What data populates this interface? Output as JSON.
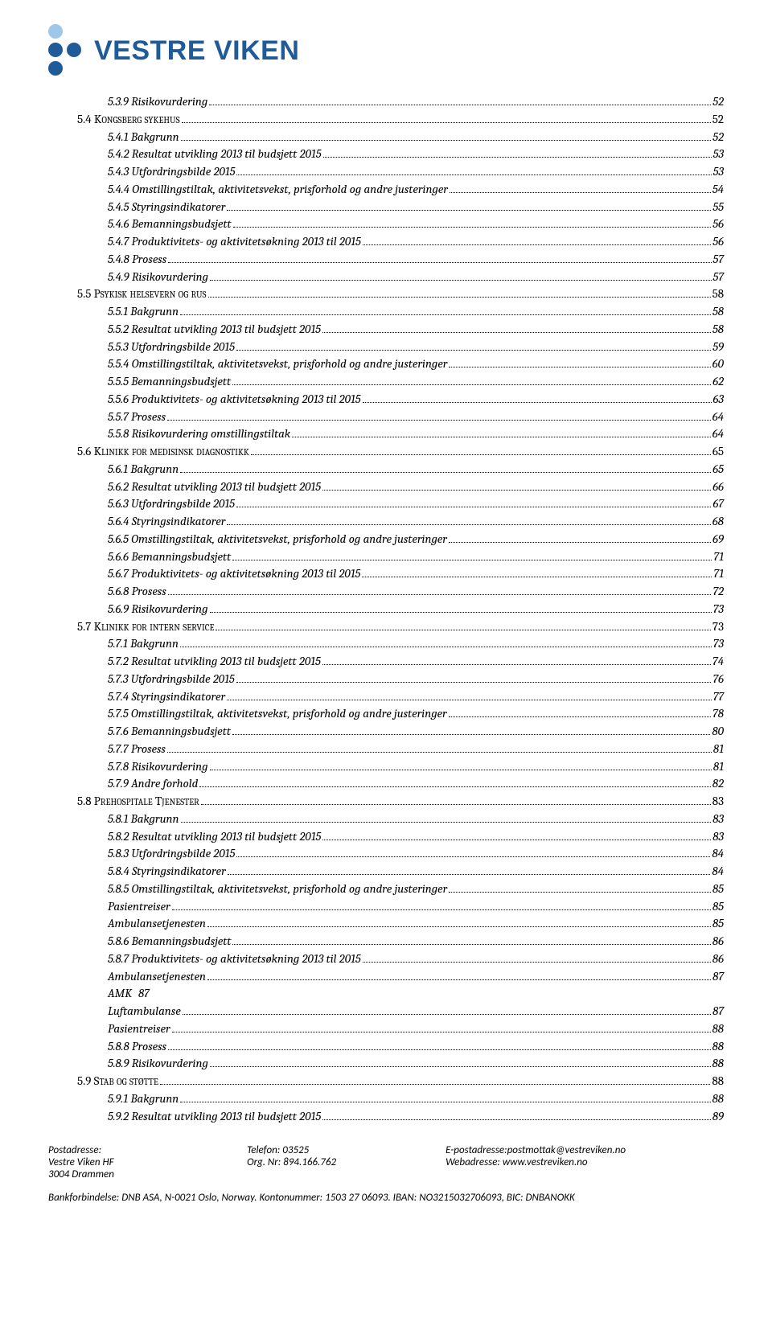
{
  "logo_text": "VESTRE VIKEN",
  "toc": [
    {
      "lvl": 2,
      "txt": "5.3.9 Risikovurdering",
      "pg": "52"
    },
    {
      "lvl": 1,
      "txt": "5.4 Kongsberg sykehus",
      "pg": "52",
      "section": true
    },
    {
      "lvl": 2,
      "txt": "5.4.1 Bakgrunn",
      "pg": "52"
    },
    {
      "lvl": 2,
      "txt": "5.4.2 Resultat utvikling 2013 til budsjett 2015",
      "pg": "53"
    },
    {
      "lvl": 2,
      "txt": "5.4.3 Utfordringsbilde 2015",
      "pg": "53"
    },
    {
      "lvl": 2,
      "txt": "5.4.4 Omstillingstiltak, aktivitetsvekst, prisforhold og andre justeringer",
      "pg": "54"
    },
    {
      "lvl": 2,
      "txt": "5.4.5 Styringsindikatorer",
      "pg": "55"
    },
    {
      "lvl": 2,
      "txt": "5.4.6 Bemanningsbudsjett",
      "pg": "56"
    },
    {
      "lvl": 2,
      "txt": "5.4.7 Produktivitets- og aktivitetsøkning 2013 til 2015",
      "pg": "56"
    },
    {
      "lvl": 2,
      "txt": "5.4.8 Prosess",
      "pg": "57"
    },
    {
      "lvl": 2,
      "txt": "5.4.9 Risikovurdering",
      "pg": "57"
    },
    {
      "lvl": 1,
      "txt": "5.5 Psykisk helsevern og rus",
      "pg": "58",
      "section": true
    },
    {
      "lvl": 2,
      "txt": "5.5.1 Bakgrunn",
      "pg": "58"
    },
    {
      "lvl": 2,
      "txt": "5.5.2 Resultat utvikling 2013 til budsjett 2015",
      "pg": "58"
    },
    {
      "lvl": 2,
      "txt": "5.5.3 Utfordringsbilde 2015",
      "pg": "59"
    },
    {
      "lvl": 2,
      "txt": "5.5.4 Omstillingstiltak, aktivitetsvekst, prisforhold og andre justeringer",
      "pg": "60"
    },
    {
      "lvl": 2,
      "txt": "5.5.5 Bemanningsbudsjett",
      "pg": "62"
    },
    {
      "lvl": 2,
      "txt": "5.5.6 Produktivitets- og aktivitetsøkning 2013 til 2015",
      "pg": "63"
    },
    {
      "lvl": 2,
      "txt": "5.5.7 Prosess",
      "pg": "64"
    },
    {
      "lvl": 2,
      "txt": "5.5.8 Risikovurdering omstillingstiltak",
      "pg": "64"
    },
    {
      "lvl": 1,
      "txt": "5.6 Klinikk for medisinsk diagnostikk",
      "pg": "65",
      "section": true
    },
    {
      "lvl": 2,
      "txt": "5.6.1 Bakgrunn",
      "pg": "65"
    },
    {
      "lvl": 2,
      "txt": "5.6.2 Resultat utvikling 2013 til budsjett 2015",
      "pg": "66"
    },
    {
      "lvl": 2,
      "txt": "5.6.3 Utfordringsbilde 2015",
      "pg": "67"
    },
    {
      "lvl": 2,
      "txt": "5.6.4 Styringsindikatorer",
      "pg": "68"
    },
    {
      "lvl": 2,
      "txt": "5.6.5 Omstillingstiltak, aktivitetsvekst, prisforhold og andre justeringer",
      "pg": "69"
    },
    {
      "lvl": 2,
      "txt": "5.6.6 Bemanningsbudsjett",
      "pg": "71"
    },
    {
      "lvl": 2,
      "txt": "5.6.7 Produktivitets- og aktivitetsøkning 2013 til 2015",
      "pg": "71"
    },
    {
      "lvl": 2,
      "txt": "5.6.8 Prosess",
      "pg": "72"
    },
    {
      "lvl": 2,
      "txt": "5.6.9 Risikovurdering",
      "pg": "73"
    },
    {
      "lvl": 1,
      "txt": "5.7 Klinikk for intern service",
      "pg": "73",
      "section": true
    },
    {
      "lvl": 2,
      "txt": "5.7.1 Bakgrunn",
      "pg": "73"
    },
    {
      "lvl": 2,
      "txt": "5.7.2 Resultat utvikling 2013 til budsjett 2015",
      "pg": "74"
    },
    {
      "lvl": 2,
      "txt": "5.7.3 Utfordringsbilde 2015",
      "pg": "76"
    },
    {
      "lvl": 2,
      "txt": "5.7.4 Styringsindikatorer",
      "pg": "77"
    },
    {
      "lvl": 2,
      "txt": "5.7.5 Omstillingstiltak, aktivitetsvekst, prisforhold og andre justeringer",
      "pg": "78"
    },
    {
      "lvl": 2,
      "txt": "5.7.6 Bemanningsbudsjett",
      "pg": "80"
    },
    {
      "lvl": 2,
      "txt": "5.7.7 Prosess",
      "pg": "81"
    },
    {
      "lvl": 2,
      "txt": "5.7.8 Risikovurdering",
      "pg": "81"
    },
    {
      "lvl": 2,
      "txt": "5.7.9 Andre forhold",
      "pg": "82"
    },
    {
      "lvl": 1,
      "txt": "5.8 Prehospitale Tjenester",
      "pg": "83",
      "section": true
    },
    {
      "lvl": 2,
      "txt": "5.8.1 Bakgrunn",
      "pg": "83"
    },
    {
      "lvl": 2,
      "txt": "5.8.2 Resultat utvikling 2013 til budsjett 2015",
      "pg": "83"
    },
    {
      "lvl": 2,
      "txt": "5.8.3 Utfordringsbilde 2015",
      "pg": "84"
    },
    {
      "lvl": 2,
      "txt": "5.8.4 Styringsindikatorer",
      "pg": "84"
    },
    {
      "lvl": 2,
      "txt": "5.8.5 Omstillingstiltak, aktivitetsvekst, prisforhold og andre justeringer",
      "pg": "85"
    },
    {
      "lvl": 2,
      "txt": "Pasientreiser",
      "pg": "85"
    },
    {
      "lvl": 2,
      "txt": "Ambulansetjenesten",
      "pg": "85"
    },
    {
      "lvl": 2,
      "txt": "5.8.6 Bemanningsbudsjett",
      "pg": "86"
    },
    {
      "lvl": 2,
      "txt": "5.8.7 Produktivitets- og aktivitetsøkning 2013 til 2015",
      "pg": "86"
    },
    {
      "lvl": 2,
      "txt": "Ambulansetjenesten",
      "pg": "87"
    },
    {
      "lvl": 2,
      "txt": "AMK",
      "pg": "87",
      "numafter": true
    },
    {
      "lvl": 2,
      "txt": "Luftambulanse",
      "pg": "87"
    },
    {
      "lvl": 2,
      "txt": "Pasientreiser",
      "pg": "88"
    },
    {
      "lvl": 2,
      "txt": "5.8.8 Prosess",
      "pg": "88"
    },
    {
      "lvl": 2,
      "txt": "5.8.9 Risikovurdering",
      "pg": "88"
    },
    {
      "lvl": 1,
      "txt": "5.9 Stab og støtte",
      "pg": "88",
      "section": true
    },
    {
      "lvl": 2,
      "txt": "5.9.1 Bakgrunn",
      "pg": "88"
    },
    {
      "lvl": 2,
      "txt": "5.9.2 Resultat utvikling 2013 til budsjett 2015",
      "pg": "89"
    }
  ],
  "footer": {
    "col1_l1": "Postadresse:",
    "col1_l2": "Vestre Viken HF",
    "col1_l3": "3004 Drammen",
    "col2_l1": "Telefon: 03525",
    "col2_l2": "Org. Nr: 894.166.762",
    "col3_l1": "E-postadresse:postmottak@vestreviken.no",
    "col3_l2": "Webadresse:   www.vestreviken.no",
    "bottom": "Bankforbindelse: DNB ASA, N-0021 Oslo, Norway. Kontonummer: 1503 27 06093. IBAN: NO3215032706093, BIC: DNBANOKK"
  }
}
